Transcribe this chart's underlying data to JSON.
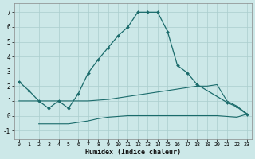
{
  "xlabel": "Humidex (Indice chaleur)",
  "bg_color": "#cce8e8",
  "line_color": "#1a6b6b",
  "grid_color": "#aacece",
  "xlim": [
    -0.5,
    23.5
  ],
  "ylim": [
    -1.6,
    7.6
  ],
  "xticks": [
    0,
    1,
    2,
    3,
    4,
    5,
    6,
    7,
    8,
    9,
    10,
    11,
    12,
    13,
    14,
    15,
    16,
    17,
    18,
    19,
    20,
    21,
    22,
    23
  ],
  "yticks": [
    -1,
    0,
    1,
    2,
    3,
    4,
    5,
    6,
    7
  ],
  "line1_x": [
    0,
    1,
    2,
    3,
    4,
    5,
    6,
    7,
    8,
    9,
    10,
    11,
    12,
    13,
    14,
    15,
    16,
    17,
    18,
    21,
    22,
    23
  ],
  "line1_y": [
    2.3,
    1.7,
    1.0,
    0.5,
    1.0,
    0.5,
    1.5,
    2.9,
    3.8,
    4.6,
    5.4,
    6.0,
    7.0,
    7.0,
    7.0,
    5.7,
    3.4,
    2.9,
    2.1,
    0.9,
    0.6,
    0.1
  ],
  "line2_x": [
    0,
    1,
    2,
    3,
    4,
    5,
    6,
    7,
    8,
    9,
    10,
    11,
    12,
    13,
    14,
    15,
    16,
    17,
    18,
    19,
    20,
    21,
    22,
    23
  ],
  "line2_y": [
    1.0,
    1.0,
    1.0,
    1.0,
    1.0,
    1.0,
    1.0,
    1.0,
    1.05,
    1.1,
    1.2,
    1.3,
    1.4,
    1.5,
    1.6,
    1.7,
    1.8,
    1.9,
    2.0,
    2.0,
    2.1,
    1.0,
    0.65,
    0.15
  ],
  "line3_x": [
    2,
    3,
    4,
    5,
    6,
    7,
    8,
    9,
    10,
    11,
    12,
    13,
    14,
    15,
    16,
    17,
    18,
    19,
    20,
    21,
    22,
    23
  ],
  "line3_y": [
    -0.55,
    -0.55,
    -0.55,
    -0.55,
    -0.45,
    -0.35,
    -0.2,
    -0.1,
    -0.05,
    0.0,
    0.0,
    0.0,
    0.0,
    0.0,
    0.0,
    0.0,
    0.0,
    0.0,
    0.0,
    -0.05,
    -0.1,
    0.1
  ]
}
